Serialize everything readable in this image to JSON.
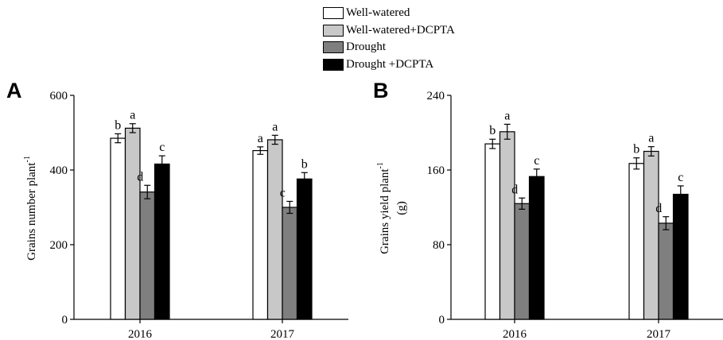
{
  "colors": {
    "well_watered": "#ffffff",
    "well_watered_dcpta": "#c8c8c8",
    "drought": "#7f7f7f",
    "drought_dcpta": "#000000"
  },
  "legend": {
    "placement": "top-center",
    "items": [
      "Well-watered",
      "Well-watered+DCPTA",
      "Drought",
      "Drought +DCPTA"
    ]
  },
  "panels": {
    "A": {
      "letter": "A",
      "ylabel_base": "Grains number plant",
      "ylabel_sup": "-1"
    },
    "B": {
      "letter": "B",
      "ylabel_base": "Grains yield plant",
      "ylabel_sup": "-1",
      "ylabel_unit": "(g)"
    }
  },
  "chart_data": [
    {
      "type": "bar",
      "panel": "A",
      "title": "",
      "xlabel": "",
      "ylabel": "Grains number plant-1",
      "categories": [
        "2016",
        "2017"
      ],
      "ylim": [
        0,
        600
      ],
      "yticks": [
        0,
        200,
        400,
        600
      ],
      "grid": false,
      "series": [
        {
          "name": "Well-watered",
          "values": [
            485,
            452
          ],
          "errors": [
            12,
            10
          ],
          "letters": [
            "b",
            "a"
          ]
        },
        {
          "name": "Well-watered+DCPTA",
          "values": [
            512,
            481
          ],
          "errors": [
            12,
            12
          ],
          "letters": [
            "a",
            "a"
          ]
        },
        {
          "name": "Drought",
          "values": [
            341,
            300
          ],
          "errors": [
            18,
            16
          ],
          "letters": [
            "d",
            "c"
          ]
        },
        {
          "name": "Drought +DCPTA",
          "values": [
            416,
            376
          ],
          "errors": [
            22,
            17
          ],
          "letters": [
            "c",
            "b"
          ]
        }
      ]
    },
    {
      "type": "bar",
      "panel": "B",
      "title": "",
      "xlabel": "",
      "ylabel": "Grains yield plant-1 (g)",
      "categories": [
        "2016",
        "2017"
      ],
      "ylim": [
        0,
        240
      ],
      "yticks": [
        0,
        80,
        160,
        240
      ],
      "grid": false,
      "series": [
        {
          "name": "Well-watered",
          "values": [
            188,
            167
          ],
          "errors": [
            5,
            6
          ],
          "letters": [
            "b",
            "b"
          ]
        },
        {
          "name": "Well-watered+DCPTA",
          "values": [
            201,
            180
          ],
          "errors": [
            8,
            5
          ],
          "letters": [
            "a",
            "a"
          ]
        },
        {
          "name": "Drought",
          "values": [
            124,
            103
          ],
          "errors": [
            6,
            7
          ],
          "letters": [
            "d",
            "d"
          ]
        },
        {
          "name": "Drought +DCPTA",
          "values": [
            153,
            134
          ],
          "errors": [
            8,
            9
          ],
          "letters": [
            "c",
            "c"
          ]
        }
      ]
    }
  ]
}
